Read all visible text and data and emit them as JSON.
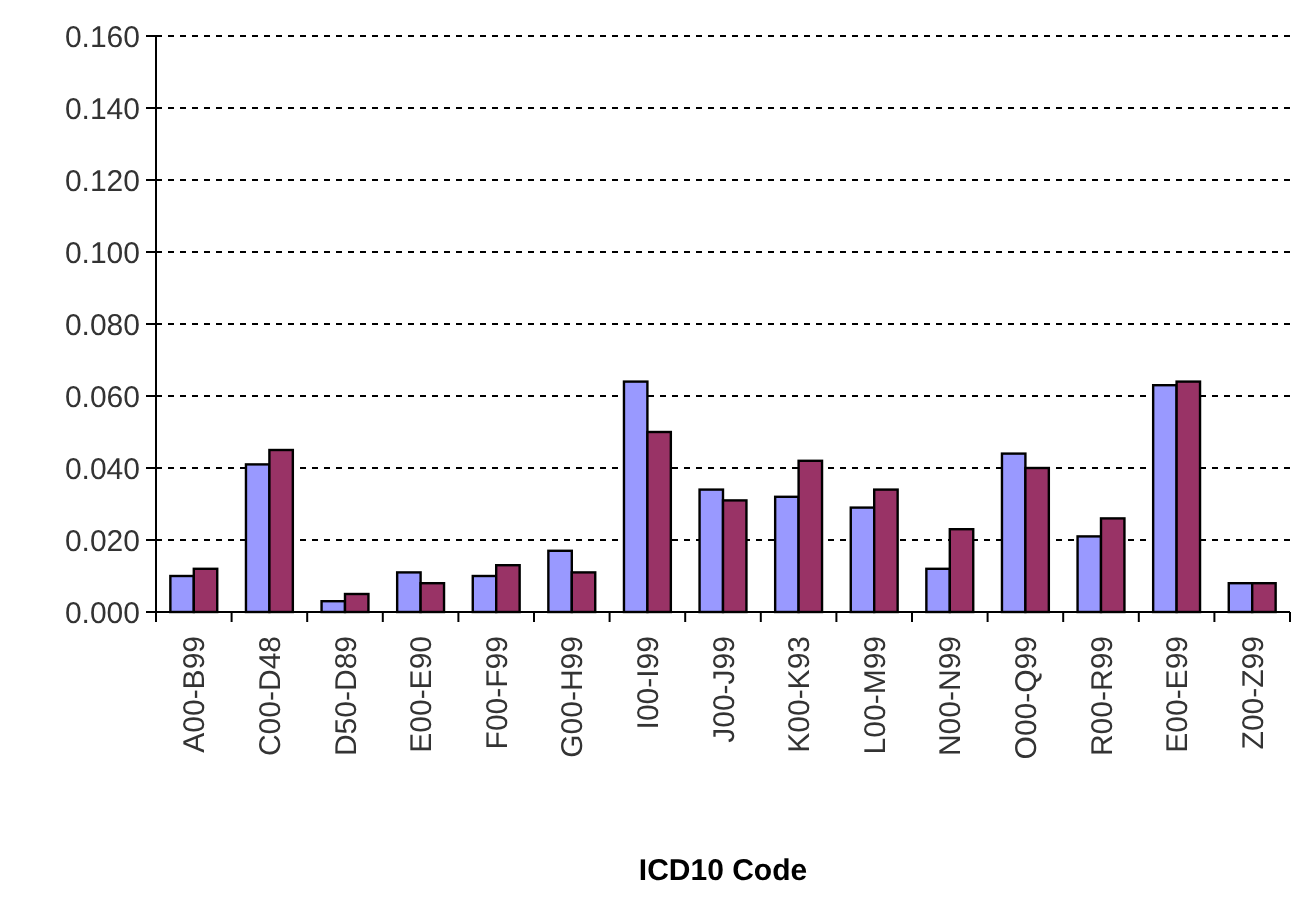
{
  "chart_data": {
    "type": "bar",
    "xlabel": "ICD10 Code",
    "categories": [
      "A00-B99",
      "C00-D48",
      "D50-D89",
      "E00-E90",
      "F00-F99",
      "G00-H99",
      "I00-I99",
      "J00-J99",
      "K00-K93",
      "L00-M99",
      "N00-N99",
      "O00-Q99",
      "R00-R99",
      "E00-E99",
      "Z00-Z99"
    ],
    "series": [
      {
        "color": "#9999ff",
        "values": [
          0.01,
          0.041,
          0.003,
          0.011,
          0.01,
          0.017,
          0.064,
          0.034,
          0.032,
          0.029,
          0.012,
          0.044,
          0.021,
          0.063,
          0.008
        ]
      },
      {
        "color": "#993366",
        "values": [
          0.012,
          0.045,
          0.005,
          0.008,
          0.013,
          0.011,
          0.05,
          0.031,
          0.042,
          0.034,
          0.023,
          0.04,
          0.026,
          0.064,
          0.008
        ]
      }
    ],
    "ylim": [
      0,
      0.16
    ],
    "yticks": [
      {
        "value": 0,
        "label": "0.000"
      },
      {
        "value": 0.02,
        "label": "0.020"
      },
      {
        "value": 0.04,
        "label": "0.040"
      },
      {
        "value": 0.06,
        "label": "0.060"
      },
      {
        "value": 0.08,
        "label": "0.080"
      },
      {
        "value": 0.1,
        "label": "0.100"
      },
      {
        "value": 0.12,
        "label": "0.120"
      },
      {
        "value": 0.14,
        "label": "0.140"
      },
      {
        "value": 0.16,
        "label": "0.160"
      }
    ],
    "grid": "y"
  }
}
